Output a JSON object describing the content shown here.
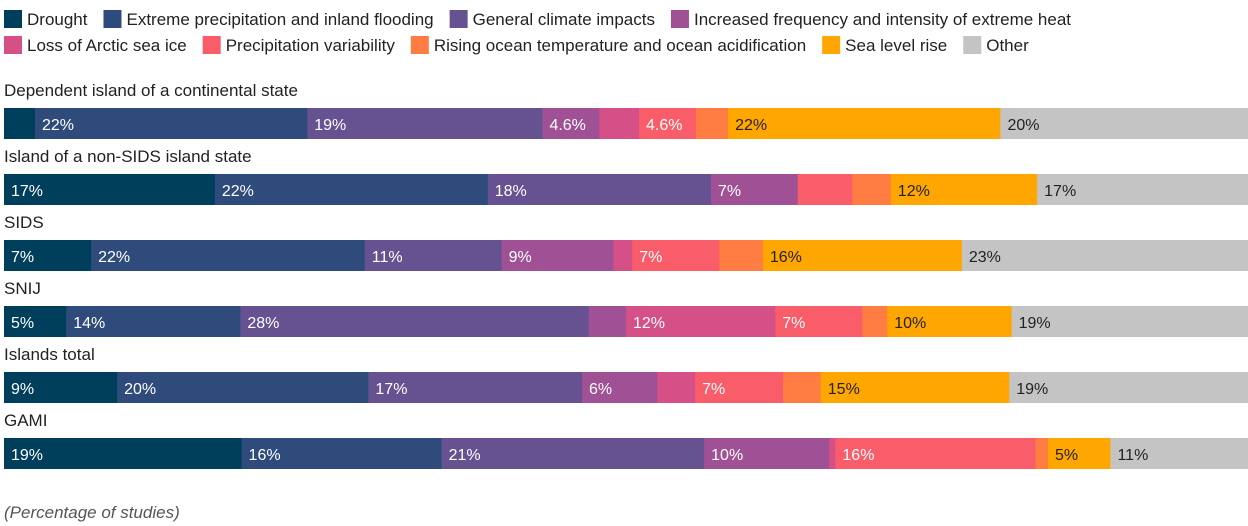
{
  "chart_data": {
    "type": "bar",
    "orientation": "horizontal",
    "stacked": true,
    "normalized_to": 100,
    "footnote": "(Percentage of studies)",
    "legend_position": "top",
    "series": [
      {
        "name": "Drought",
        "color": "#003f5c"
      },
      {
        "name": "Extreme precipitation and inland flooding",
        "color": "#2f4b7c"
      },
      {
        "name": "General climate impacts",
        "color": "#665191"
      },
      {
        "name": "Increased frequency and intensity of extreme heat",
        "color": "#a05195"
      },
      {
        "name": "Loss of Arctic sea ice",
        "color": "#d45087"
      },
      {
        "name": "Precipitation variability",
        "color": "#f95d6a"
      },
      {
        "name": "Rising ocean temperature and ocean acidification",
        "color": "#ff7c43"
      },
      {
        "name": "Sea level rise",
        "color": "#ffa600"
      },
      {
        "name": "Other",
        "color": "#c4c4c4"
      }
    ],
    "categories": [
      {
        "name": "Dependent island of a continental state",
        "values": [
          2.5,
          22,
          19,
          4.6,
          3.2,
          4.6,
          2.6,
          22,
          20
        ],
        "labels": [
          "",
          "22%",
          "19%",
          "4.6%",
          "",
          "4.6%",
          "",
          "22%",
          "20%"
        ]
      },
      {
        "name": "Island of a non-SIDS island state",
        "values": [
          17,
          22,
          18,
          7,
          4.4,
          3.1,
          11.8,
          17
        ],
        "labels": [
          "17%",
          "22%",
          "18%",
          "7%",
          "",
          "",
          "12%",
          "17%"
        ],
        "series_order": [
          0,
          1,
          2,
          3,
          5,
          6,
          7,
          8
        ]
      },
      {
        "name": "SIDS",
        "values": [
          7,
          22,
          11,
          9,
          1.5,
          7,
          3.5,
          16,
          23
        ],
        "labels": [
          "7%",
          "22%",
          "11%",
          "9%",
          "",
          "7%",
          "",
          "16%",
          "23%"
        ]
      },
      {
        "name": "SNIJ",
        "values": [
          5,
          14,
          28,
          3,
          12,
          7,
          2,
          10,
          19
        ],
        "labels": [
          "5%",
          "14%",
          "28%",
          "",
          "12%",
          "7%",
          "",
          "10%",
          "19%"
        ]
      },
      {
        "name": "Islands total",
        "values": [
          9,
          20,
          17,
          6,
          3,
          7,
          3,
          15,
          19
        ],
        "labels": [
          "9%",
          "20%",
          "17%",
          "6%",
          "",
          "7%",
          "",
          "15%",
          "19%"
        ]
      },
      {
        "name": "GAMI",
        "values": [
          19,
          16,
          21,
          10,
          0.5,
          16,
          1,
          5,
          11
        ],
        "labels": [
          "19%",
          "16%",
          "21%",
          "10%",
          "",
          "16%",
          "",
          "5%",
          "11%"
        ]
      }
    ]
  }
}
